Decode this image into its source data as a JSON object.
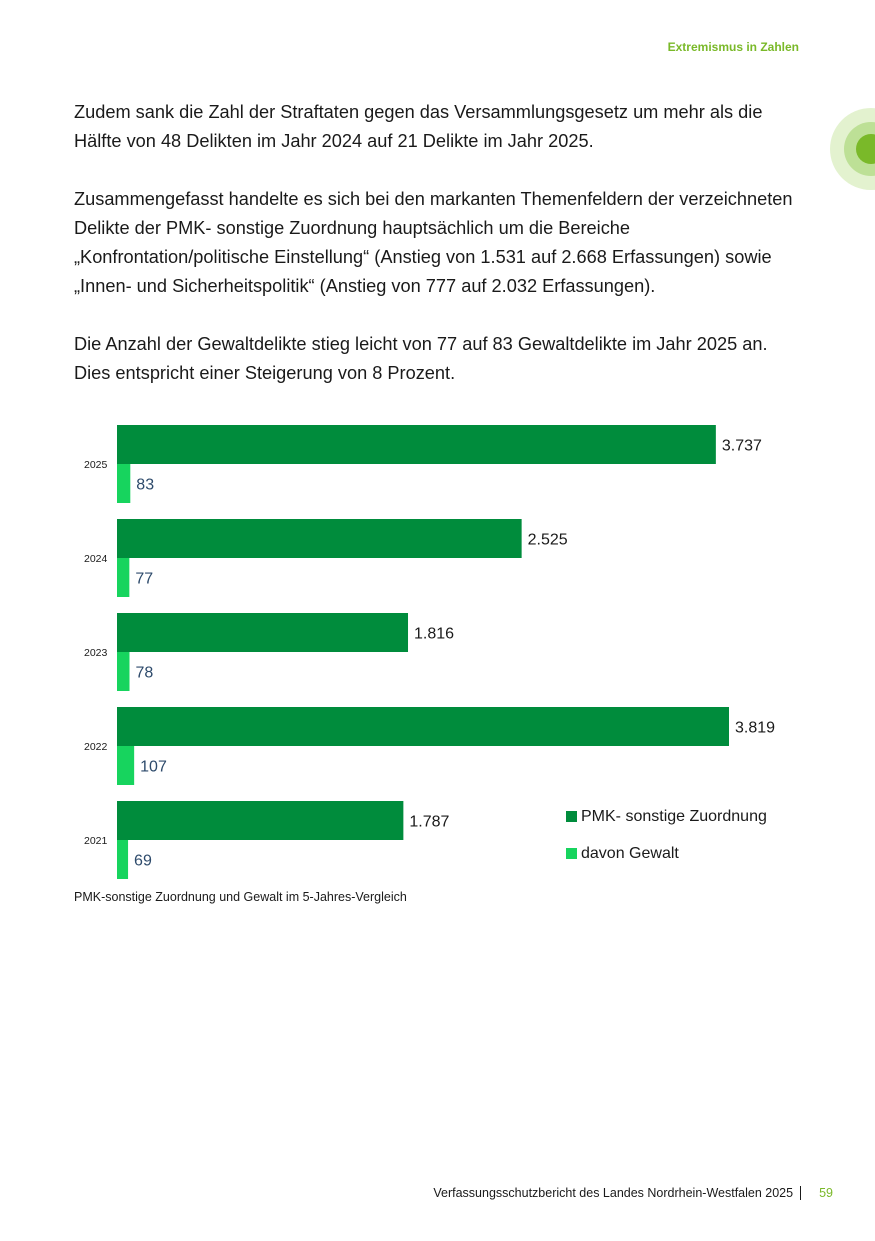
{
  "header": {
    "section_title": "Extremismus in Zahlen"
  },
  "paragraphs": [
    "Zudem sank die Zahl der Straftaten gegen das Versammlungsgesetz um mehr als die Hälfte von 48 Delikten im Jahr 2024 auf 21 Delikte im Jahr 2025.",
    "Zusammengefasst handelte es sich bei den markanten Themenfeldern der ver­zeichneten Delikte der PMK- sonstige Zuordnung hauptsächlich um die Bereiche „Konfrontation/politische Einstellung“ (Anstieg von 1.531 auf 2.668 Erfassungen) sowie „Innen- und Sicherheitspolitik“ (Anstieg von 777 auf 2.032 Erfassungen).",
    "Die Anzahl der Gewaltdelikte stieg leicht von 77 auf 83 Gewaltdelikte im Jahr 2025 an. Dies entspricht einer Steigerung von 8 Prozent."
  ],
  "chart_data": {
    "type": "bar",
    "orientation": "horizontal",
    "categories": [
      "2025",
      "2024",
      "2023",
      "2022",
      "2021"
    ],
    "series": [
      {
        "name": "PMK- sonstige Zuordnung",
        "values": [
          3737,
          2525,
          1816,
          3819,
          1787
        ],
        "labels": [
          "3.737",
          "2.525",
          "1.816",
          "3.819",
          "1.787"
        ],
        "color": "#008c3c"
      },
      {
        "name": "davon Gewalt",
        "values": [
          83,
          77,
          78,
          107,
          69
        ],
        "labels": [
          "83",
          "77",
          "78",
          "107",
          "69"
        ],
        "color": "#17d45e"
      }
    ],
    "xlim": [
      0,
      3819
    ],
    "legend_position": "bottom-right",
    "grid": false
  },
  "caption": "PMK-sonstige Zuordnung und Gewalt im 5-Jahres-Vergleich",
  "footer": {
    "report_title": "Verfassungsschutzbericht des Landes Nordrhein-Westfalen 2025",
    "page_number": "59"
  },
  "colors": {
    "accent": "#7ab929",
    "bar_main": "#008c3c",
    "bar_sub": "#17d45e",
    "deco_light": "#e3f2cf",
    "deco_mid": "#bde096"
  }
}
